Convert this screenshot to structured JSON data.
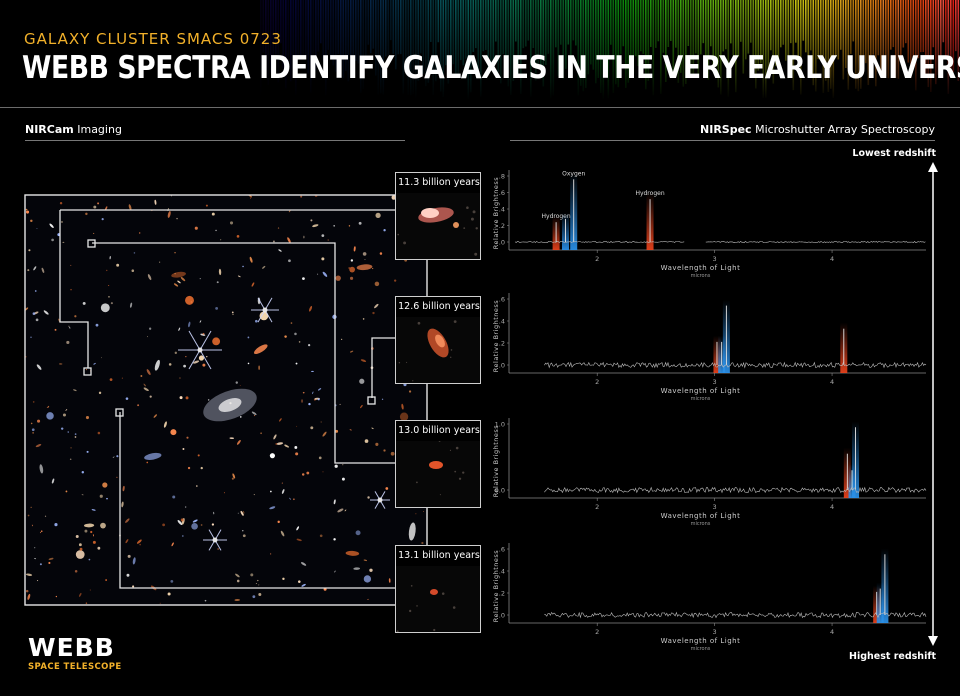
{
  "header": {
    "subtitle": "GALAXY CLUSTER SMACS 0723",
    "title": "WEBB SPECTRA IDENTIFY GALAXIES IN THE VERY EARLY UNIVERSE"
  },
  "left_section": {
    "title_bold": "NIRCam",
    "title_rest": " Imaging"
  },
  "right_section": {
    "title_bold": "NIRSpec",
    "title_rest": " Microshutter Array Spectroscopy"
  },
  "redshift_axis": {
    "top_label": "Lowest redshift",
    "bottom_label": "Highest redshift"
  },
  "thumbnails": [
    {
      "label": "11.3 billion years"
    },
    {
      "label": "12.6 billion years"
    },
    {
      "label": "13.0 billion years"
    },
    {
      "label": "13.1 billion years"
    }
  ],
  "spectra": [
    {
      "ylabel": "Relative Brightness",
      "xlabel": "Wavelength of Light",
      "xunit": "microns",
      "xticks": [
        "2",
        "3",
        "4"
      ],
      "yticks": [
        ".8",
        ".6",
        ".4",
        ".2",
        ".0"
      ],
      "lines": [
        {
          "label": "Hydrogen",
          "x": 1.65,
          "element": "hydrogen",
          "strength": 0.3
        },
        {
          "label": "Oxygen",
          "x": 1.8,
          "element": "oxygen",
          "strength": 0.95
        },
        {
          "label": "",
          "x": 1.73,
          "element": "oxygen",
          "strength": 0.35
        },
        {
          "label": "Hydrogen",
          "x": 2.45,
          "element": "hydrogen",
          "strength": 0.65
        }
      ]
    },
    {
      "ylabel": "Relative Brightness",
      "xlabel": "Wavelength of Light",
      "xunit": "microns",
      "xticks": [
        "2",
        "3",
        "4"
      ],
      "yticks": [
        ".6",
        ".4",
        ".2",
        ".0"
      ],
      "lines": [
        {
          "label": "",
          "x": 3.02,
          "element": "hydrogen",
          "strength": 0.35
        },
        {
          "label": "",
          "x": 3.1,
          "element": "oxygen",
          "strength": 0.9
        },
        {
          "label": "",
          "x": 3.06,
          "element": "oxygen",
          "strength": 0.35
        },
        {
          "label": "",
          "x": 4.1,
          "element": "hydrogen",
          "strength": 0.55
        }
      ]
    },
    {
      "ylabel": "Relative Brightness",
      "xlabel": "Wavelength of Light",
      "xunit": "microns",
      "xticks": [
        "2",
        "3",
        "4"
      ],
      "yticks": [
        "1.0",
        "0.0"
      ],
      "lines": [
        {
          "label": "",
          "x": 4.13,
          "element": "hydrogen",
          "strength": 0.55
        },
        {
          "label": "",
          "x": 4.2,
          "element": "oxygen",
          "strength": 0.95
        },
        {
          "label": "",
          "x": 4.17,
          "element": "oxygen",
          "strength": 0.3
        }
      ]
    },
    {
      "ylabel": "Relative Brightness",
      "xlabel": "Wavelength of Light",
      "xunit": "microns",
      "xticks": [
        "2",
        "3",
        "4"
      ],
      "yticks": [
        ".6",
        ".4",
        ".2",
        ".0"
      ],
      "lines": [
        {
          "label": "",
          "x": 4.38,
          "element": "hydrogen",
          "strength": 0.35
        },
        {
          "label": "",
          "x": 4.45,
          "element": "oxygen",
          "strength": 0.92
        },
        {
          "label": "",
          "x": 4.41,
          "element": "oxygen",
          "strength": 0.4
        }
      ]
    }
  ],
  "logo": {
    "word": "WEBB",
    "sub": "SPACE TELESCOPE"
  },
  "colors": {
    "hydrogen": "#e8421c",
    "oxygen": "#2a8fe6",
    "accent": "#f2b12a"
  }
}
